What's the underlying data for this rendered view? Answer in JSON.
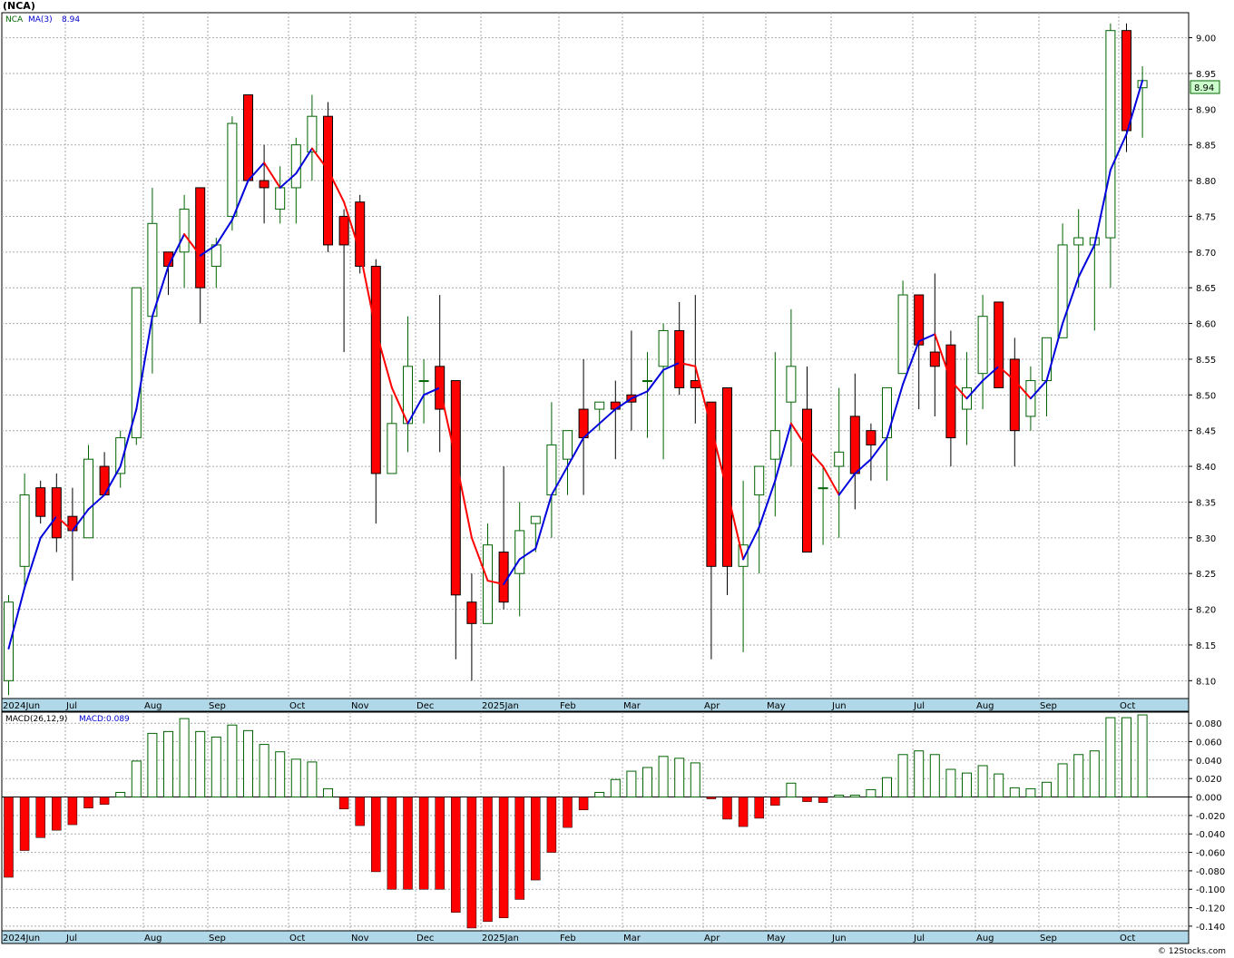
{
  "chart_title": "(NCA)",
  "legend": {
    "symbol": "NCA",
    "ma_label": "MA(3)",
    "ma_value": "8.94"
  },
  "macd_legend": {
    "label": "MACD(26,12,9)",
    "value": "MACD:0.089"
  },
  "last_price_label": "8.94",
  "copyright": "© 12Stocks.com",
  "colors": {
    "up_candle_stroke": "#006400",
    "down_candle_fill": "#ff0000",
    "ma_up": "#0000dd",
    "ma_down": "#ff0000",
    "macd_pos_stroke": "#006400",
    "macd_neg_fill": "#ff0000",
    "axis_strip": "#b0d8e8"
  },
  "month_labels": [
    "2024Jun",
    "Jul",
    "Aug",
    "Sep",
    "Oct",
    "Nov",
    "Dec",
    "2025Jan",
    "Feb",
    "Mar",
    "Apr",
    "May",
    "Jun",
    "Jul",
    "Aug",
    "Sep",
    "Oct"
  ],
  "chart_data": [
    {
      "type": "candlestick",
      "title": "(NCA)",
      "frequency": "weekly",
      "ylim": [
        8.075,
        9.035
      ],
      "y_ticks": [
        "9.00",
        "8.95",
        "8.90",
        "8.85",
        "8.80",
        "8.75",
        "8.70",
        "8.65",
        "8.60",
        "8.55",
        "8.50",
        "8.45",
        "8.40",
        "8.35",
        "8.30",
        "8.25",
        "8.20",
        "8.15",
        "8.10"
      ],
      "grid": true,
      "ma_period": 3,
      "candles": [
        {
          "o": 8.1,
          "h": 8.22,
          "l": 8.08,
          "c": 8.21
        },
        {
          "o": 8.26,
          "h": 8.39,
          "l": 8.23,
          "c": 8.36
        },
        {
          "o": 8.37,
          "h": 8.38,
          "l": 8.32,
          "c": 8.33
        },
        {
          "o": 8.37,
          "h": 8.39,
          "l": 8.28,
          "c": 8.3
        },
        {
          "o": 8.33,
          "h": 8.37,
          "l": 8.24,
          "c": 8.31
        },
        {
          "o": 8.3,
          "h": 8.43,
          "l": 8.3,
          "c": 8.41
        },
        {
          "o": 8.4,
          "h": 8.42,
          "l": 8.36,
          "c": 8.36
        },
        {
          "o": 8.39,
          "h": 8.45,
          "l": 8.37,
          "c": 8.44
        },
        {
          "o": 8.44,
          "h": 8.65,
          "l": 8.43,
          "c": 8.65
        },
        {
          "o": 8.61,
          "h": 8.79,
          "l": 8.53,
          "c": 8.74
        },
        {
          "o": 8.7,
          "h": 8.7,
          "l": 8.64,
          "c": 8.68
        },
        {
          "o": 8.7,
          "h": 8.78,
          "l": 8.65,
          "c": 8.76
        },
        {
          "o": 8.79,
          "h": 8.79,
          "l": 8.6,
          "c": 8.65
        },
        {
          "o": 8.68,
          "h": 8.72,
          "l": 8.65,
          "c": 8.71
        },
        {
          "o": 8.75,
          "h": 8.89,
          "l": 8.73,
          "c": 8.88
        },
        {
          "o": 8.92,
          "h": 8.92,
          "l": 8.8,
          "c": 8.8
        },
        {
          "o": 8.8,
          "h": 8.85,
          "l": 8.74,
          "c": 8.79
        },
        {
          "o": 8.76,
          "h": 8.82,
          "l": 8.74,
          "c": 8.79
        },
        {
          "o": 8.79,
          "h": 8.86,
          "l": 8.74,
          "c": 8.85
        },
        {
          "o": 8.84,
          "h": 8.92,
          "l": 8.8,
          "c": 8.89
        },
        {
          "o": 8.89,
          "h": 8.91,
          "l": 8.7,
          "c": 8.71
        },
        {
          "o": 8.75,
          "h": 8.76,
          "l": 8.56,
          "c": 8.71
        },
        {
          "o": 8.77,
          "h": 8.78,
          "l": 8.67,
          "c": 8.68
        },
        {
          "o": 8.68,
          "h": 8.69,
          "l": 8.32,
          "c": 8.39
        },
        {
          "o": 8.39,
          "h": 8.5,
          "l": 8.39,
          "c": 8.46
        },
        {
          "o": 8.46,
          "h": 8.61,
          "l": 8.42,
          "c": 8.54
        },
        {
          "o": 8.52,
          "h": 8.55,
          "l": 8.46,
          "c": 8.52
        },
        {
          "o": 8.54,
          "h": 8.64,
          "l": 8.42,
          "c": 8.48
        },
        {
          "o": 8.52,
          "h": 8.52,
          "l": 8.13,
          "c": 8.22
        },
        {
          "o": 8.21,
          "h": 8.25,
          "l": 8.1,
          "c": 8.18
        },
        {
          "o": 8.18,
          "h": 8.32,
          "l": 8.18,
          "c": 8.29
        },
        {
          "o": 8.28,
          "h": 8.4,
          "l": 8.2,
          "c": 8.21
        },
        {
          "o": 8.25,
          "h": 8.35,
          "l": 8.19,
          "c": 8.31
        },
        {
          "o": 8.32,
          "h": 8.33,
          "l": 8.28,
          "c": 8.33
        },
        {
          "o": 8.36,
          "h": 8.49,
          "l": 8.3,
          "c": 8.43
        },
        {
          "o": 8.41,
          "h": 8.45,
          "l": 8.36,
          "c": 8.45
        },
        {
          "o": 8.48,
          "h": 8.55,
          "l": 8.36,
          "c": 8.44
        },
        {
          "o": 8.48,
          "h": 8.49,
          "l": 8.45,
          "c": 8.49
        },
        {
          "o": 8.49,
          "h": 8.52,
          "l": 8.41,
          "c": 8.48
        },
        {
          "o": 8.5,
          "h": 8.59,
          "l": 8.45,
          "c": 8.49
        },
        {
          "o": 8.52,
          "h": 8.56,
          "l": 8.44,
          "c": 8.52
        },
        {
          "o": 8.54,
          "h": 8.6,
          "l": 8.41,
          "c": 8.59
        },
        {
          "o": 8.59,
          "h": 8.63,
          "l": 8.5,
          "c": 8.51
        },
        {
          "o": 8.52,
          "h": 8.64,
          "l": 8.46,
          "c": 8.51
        },
        {
          "o": 8.49,
          "h": 8.49,
          "l": 8.13,
          "c": 8.26
        },
        {
          "o": 8.51,
          "h": 8.51,
          "l": 8.22,
          "c": 8.26
        },
        {
          "o": 8.26,
          "h": 8.38,
          "l": 8.14,
          "c": 8.29
        },
        {
          "o": 8.36,
          "h": 8.4,
          "l": 8.25,
          "c": 8.4
        },
        {
          "o": 8.41,
          "h": 8.56,
          "l": 8.33,
          "c": 8.45
        },
        {
          "o": 8.49,
          "h": 8.62,
          "l": 8.4,
          "c": 8.54
        },
        {
          "o": 8.48,
          "h": 8.54,
          "l": 8.28,
          "c": 8.28
        },
        {
          "o": 8.37,
          "h": 8.4,
          "l": 8.29,
          "c": 8.37
        },
        {
          "o": 8.4,
          "h": 8.51,
          "l": 8.3,
          "c": 8.42
        },
        {
          "o": 8.47,
          "h": 8.53,
          "l": 8.34,
          "c": 8.39
        },
        {
          "o": 8.45,
          "h": 8.46,
          "l": 8.38,
          "c": 8.43
        },
        {
          "o": 8.44,
          "h": 8.51,
          "l": 8.38,
          "c": 8.51
        },
        {
          "o": 8.53,
          "h": 8.66,
          "l": 8.53,
          "c": 8.64
        },
        {
          "o": 8.64,
          "h": 8.64,
          "l": 8.48,
          "c": 8.57
        },
        {
          "o": 8.56,
          "h": 8.67,
          "l": 8.47,
          "c": 8.54
        },
        {
          "o": 8.57,
          "h": 8.59,
          "l": 8.4,
          "c": 8.44
        },
        {
          "o": 8.48,
          "h": 8.56,
          "l": 8.43,
          "c": 8.51
        },
        {
          "o": 8.53,
          "h": 8.64,
          "l": 8.48,
          "c": 8.61
        },
        {
          "o": 8.63,
          "h": 8.63,
          "l": 8.51,
          "c": 8.51
        },
        {
          "o": 8.55,
          "h": 8.58,
          "l": 8.4,
          "c": 8.45
        },
        {
          "o": 8.47,
          "h": 8.54,
          "l": 8.45,
          "c": 8.52
        },
        {
          "o": 8.52,
          "h": 8.58,
          "l": 8.47,
          "c": 8.58
        },
        {
          "o": 8.58,
          "h": 8.74,
          "l": 8.58,
          "c": 8.71
        },
        {
          "o": 8.71,
          "h": 8.76,
          "l": 8.65,
          "c": 8.72
        },
        {
          "o": 8.71,
          "h": 8.72,
          "l": 8.59,
          "c": 8.72
        },
        {
          "o": 8.72,
          "h": 9.02,
          "l": 8.65,
          "c": 9.01
        },
        {
          "o": 9.01,
          "h": 9.02,
          "l": 8.84,
          "c": 8.87
        },
        {
          "o": 8.93,
          "h": 8.96,
          "l": 8.86,
          "c": 8.94
        }
      ],
      "ma3": [
        8.145,
        8.23,
        8.3,
        8.33,
        8.31,
        8.34,
        8.36,
        8.4,
        8.48,
        8.61,
        8.68,
        8.725,
        8.695,
        8.71,
        8.745,
        8.8,
        8.825,
        8.79,
        8.81,
        8.845,
        8.815,
        8.77,
        8.7,
        8.59,
        8.51,
        8.46,
        8.5,
        8.51,
        8.41,
        8.3,
        8.24,
        8.235,
        8.27,
        8.285,
        8.36,
        8.4,
        8.44,
        8.46,
        8.48,
        8.495,
        8.505,
        8.535,
        8.545,
        8.54,
        8.455,
        8.365,
        8.27,
        8.315,
        8.38,
        8.46,
        8.425,
        8.4,
        8.36,
        8.39,
        8.41,
        8.44,
        8.515,
        8.575,
        8.585,
        8.52,
        8.495,
        8.52,
        8.54,
        8.52,
        8.495,
        8.52,
        8.6,
        8.665,
        8.71,
        8.815,
        8.865,
        8.94
      ],
      "macd_ylim": [
        -0.145,
        0.092
      ],
      "macd_y_ticks": [
        "0.080",
        "0.060",
        "0.040",
        "0.020",
        "0.000",
        "-0.020",
        "-0.040",
        "-0.060",
        "-0.080",
        "-0.100",
        "-0.120",
        "-0.140"
      ],
      "macd_hist": [
        -0.087,
        -0.058,
        -0.044,
        -0.036,
        -0.03,
        -0.012,
        -0.008,
        0.005,
        0.039,
        0.069,
        0.071,
        0.085,
        0.071,
        0.065,
        0.078,
        0.072,
        0.057,
        0.049,
        0.041,
        0.038,
        0.009,
        -0.013,
        -0.031,
        -0.081,
        -0.1,
        -0.1,
        -0.1,
        -0.1,
        -0.125,
        -0.142,
        -0.135,
        -0.131,
        -0.111,
        -0.09,
        -0.06,
        -0.033,
        -0.014,
        0.005,
        0.019,
        0.028,
        0.032,
        0.044,
        0.042,
        0.037,
        -0.002,
        -0.024,
        -0.032,
        -0.023,
        -0.009,
        0.015,
        -0.005,
        -0.006,
        0.002,
        0.002,
        0.008,
        0.021,
        0.046,
        0.05,
        0.046,
        0.03,
        0.026,
        0.034,
        0.025,
        0.01,
        0.009,
        0.016,
        0.036,
        0.046,
        0.05,
        0.086,
        0.086,
        0.089
      ]
    }
  ]
}
